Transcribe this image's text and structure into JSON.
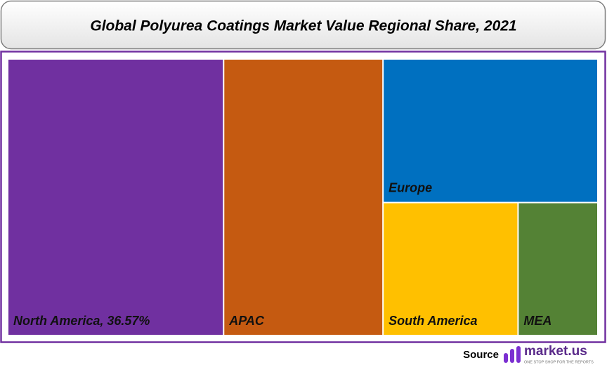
{
  "chart_data": {
    "type": "treemap",
    "title": "Global Polyurea Coatings Market Value Regional Share, 2021",
    "categories": [
      "North America, 36.57%",
      "APAC",
      "Europe",
      "South America",
      "MEA"
    ],
    "values": [
      36.57,
      27.0,
      18.9,
      11.0,
      6.5
    ],
    "colors": [
      "#7030a0",
      "#c55a11",
      "#0070c0",
      "#ffc000",
      "#548235"
    ],
    "source": "Source",
    "logo": "market.us",
    "tagline": "ONE STOP SHOP FOR THE REPORTS"
  }
}
